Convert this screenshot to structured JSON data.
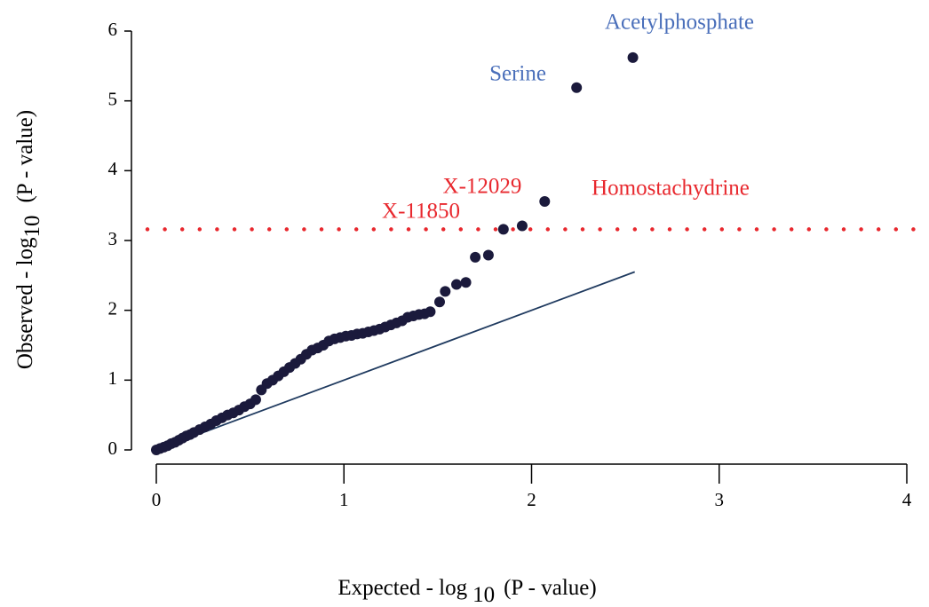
{
  "chart_data": {
    "type": "scatter",
    "xlabel": {
      "text": "Expected - log",
      "subscript": "10",
      "suffix": "(P - value)"
    },
    "ylabel": {
      "text": "Observed - log",
      "subscript": "10",
      "suffix": "(P - value)"
    },
    "xlim": [
      0,
      4
    ],
    "xticks": [
      0,
      1,
      2,
      3,
      4
    ],
    "ylim": [
      0,
      6
    ],
    "yticks": [
      0,
      1,
      2,
      3,
      4,
      5,
      6
    ],
    "series": [
      {
        "color": "#1b1a3c",
        "x": [
          0.0,
          0.02,
          0.04,
          0.06,
          0.08,
          0.1,
          0.12,
          0.14,
          0.16,
          0.18,
          0.2,
          0.23,
          0.26,
          0.29,
          0.32,
          0.35,
          0.38,
          0.41,
          0.44,
          0.47,
          0.5,
          0.53,
          0.56,
          0.59,
          0.62,
          0.65,
          0.68,
          0.71,
          0.74,
          0.77,
          0.8,
          0.83,
          0.86,
          0.89,
          0.92,
          0.95,
          0.98,
          1.01,
          1.04,
          1.07,
          1.1,
          1.13,
          1.16,
          1.19,
          1.22,
          1.25,
          1.28,
          1.31,
          1.34,
          1.37,
          1.4,
          1.43,
          1.46,
          1.51,
          1.54,
          1.6,
          1.65,
          1.7,
          1.77,
          1.85,
          1.95,
          2.07,
          2.24,
          2.54
        ],
        "values": [
          0.0,
          0.02,
          0.04,
          0.06,
          0.09,
          0.11,
          0.14,
          0.17,
          0.2,
          0.22,
          0.25,
          0.29,
          0.33,
          0.37,
          0.42,
          0.46,
          0.5,
          0.53,
          0.57,
          0.62,
          0.66,
          0.72,
          0.86,
          0.95,
          1.0,
          1.06,
          1.12,
          1.18,
          1.24,
          1.3,
          1.37,
          1.43,
          1.46,
          1.5,
          1.56,
          1.59,
          1.61,
          1.63,
          1.64,
          1.66,
          1.67,
          1.69,
          1.71,
          1.73,
          1.76,
          1.79,
          1.82,
          1.85,
          1.9,
          1.92,
          1.94,
          1.95,
          1.98,
          2.12,
          2.27,
          2.37,
          2.4,
          2.76,
          2.79,
          3.16,
          3.21,
          3.56,
          5.19,
          5.62
        ]
      }
    ],
    "reference_line": {
      "x": [
        0,
        2.55
      ],
      "y": [
        0,
        2.55
      ],
      "color": "#1f3a5f"
    },
    "threshold": {
      "value": 3.16,
      "color": "#e8282e"
    },
    "annotations": [
      {
        "text": "Acetylphosphate",
        "color": "#4a6fba"
      },
      {
        "text": "Serine",
        "color": "#4a6fba"
      },
      {
        "text": "X-12029",
        "color": "#e8282e"
      },
      {
        "text": "Homostachydrine",
        "color": "#e8282e"
      },
      {
        "text": "X-11850",
        "color": "#e8282e"
      }
    ]
  }
}
